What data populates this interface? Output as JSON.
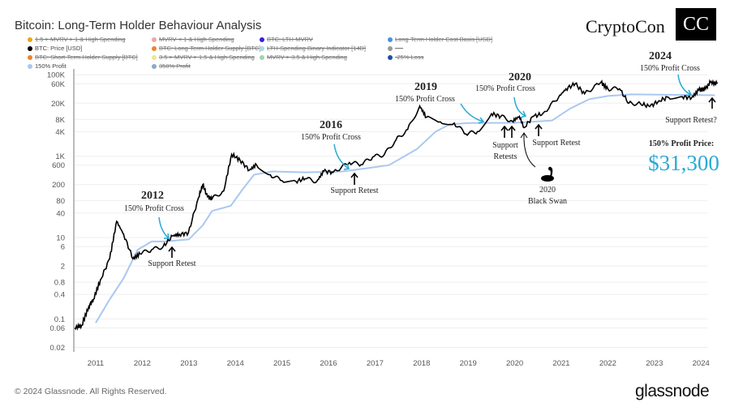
{
  "header": {
    "title": "Bitcoin: Long-Term Holder Behaviour Analysis",
    "brand": "CryptoCon",
    "brand_logo": "CC"
  },
  "legend": [
    {
      "label": "1.5 > MVRV > 1 & High Spending",
      "color": "#e6a817",
      "active": false
    },
    {
      "label": "MVRV < 1 & High Spending",
      "color": "#f2a5a5",
      "active": false
    },
    {
      "label": "BTC: LTH-MVRV",
      "color": "#3b1fd6",
      "active": false
    },
    {
      "label": "Long-Term Holder Cost Basis [USD]",
      "color": "#4a90e2",
      "active": false
    },
    {
      "label": "BTC: Price [USD]",
      "color": "#000000",
      "active": true
    },
    {
      "label": "BTC: Long-Term Holder Supply [BTC]",
      "color": "#e8872a",
      "active": false
    },
    {
      "label": "LTH-Spending Binary Indicator [14D]",
      "color": "#a8dbe8",
      "active": false
    },
    {
      "label": "----",
      "color": "#999999",
      "active": false
    },
    {
      "label": "BTC: Short-Term Holder Supply [BTC]",
      "color": "#e8872a",
      "active": false
    },
    {
      "label": "3.5 > MVRV > 1.5 & High Spending",
      "color": "#f0e68c",
      "active": false
    },
    {
      "label": "MVRV > 3.5 & High Spending",
      "color": "#9fd4b0",
      "active": false
    },
    {
      "label": "-25% Loss",
      "color": "#1f4fa8",
      "active": false
    },
    {
      "label": "150% Profit",
      "color": "#a9c8f0",
      "active": true
    },
    {
      "label": "350% Profit",
      "color": "#8fa8c8",
      "active": false
    }
  ],
  "annotations": {
    "y2012": "2012",
    "y2016": "2016",
    "y2019": "2019",
    "y2020": "2020",
    "y2024": "2024",
    "cross": "150% Profit Cross",
    "support_retest": "Support Retest",
    "support_retests_1": "Support",
    "support_retests_2": "Retests",
    "support_retest_q": "Support Retest?",
    "swan_year": "2020",
    "swan_label": "Black Swan",
    "profit_price_label": "150% Profit Price:",
    "profit_price_value": "$31,300"
  },
  "footer": {
    "copyright": "© 2024 Glassnode. All Rights Reserved.",
    "logo": "glassnode"
  },
  "chart_data": {
    "type": "line",
    "title": "Bitcoin: Long-Term Holder Behaviour Analysis",
    "y_scale": "log",
    "ylim": [
      0.02,
      100000
    ],
    "xlim": [
      2010.53,
      2024.4
    ],
    "y_ticks": [
      "100K",
      "60K",
      "20K",
      "8K",
      "4K",
      "1K",
      "600",
      "200",
      "80",
      "40",
      "10",
      "6",
      "2",
      "0.8",
      "0.4",
      "0.1",
      "0.06",
      "0.02"
    ],
    "y_tick_values": [
      100000,
      60000,
      20000,
      8000,
      4000,
      1000,
      600,
      200,
      80,
      40,
      10,
      6,
      2,
      0.8,
      0.4,
      0.1,
      0.06,
      0.02
    ],
    "x_ticks": [
      "2011",
      "2012",
      "2013",
      "2014",
      "2015",
      "2016",
      "2017",
      "2018",
      "2019",
      "2020",
      "2021",
      "2022",
      "2023",
      "2024"
    ],
    "grid": true,
    "colors": {
      "price": "#000000",
      "profit150": "#a9c8f0",
      "accent": "#29a9d6"
    },
    "series": [
      {
        "name": "BTC: Price [USD]",
        "points": [
          [
            2010.55,
            0.06
          ],
          [
            2010.7,
            0.07
          ],
          [
            2010.85,
            0.2
          ],
          [
            2010.95,
            0.3
          ],
          [
            2011.1,
            0.9
          ],
          [
            2011.3,
            3
          ],
          [
            2011.45,
            25
          ],
          [
            2011.6,
            12
          ],
          [
            2011.8,
            3
          ],
          [
            2011.95,
            4
          ],
          [
            2012.2,
            5
          ],
          [
            2012.45,
            6
          ],
          [
            2012.65,
            11
          ],
          [
            2012.8,
            12
          ],
          [
            2012.99,
            13
          ],
          [
            2013.2,
            90
          ],
          [
            2013.3,
            200
          ],
          [
            2013.4,
            100
          ],
          [
            2013.5,
            90
          ],
          [
            2013.75,
            140
          ],
          [
            2013.92,
            1100
          ],
          [
            2014.1,
            800
          ],
          [
            2014.3,
            450
          ],
          [
            2014.45,
            620
          ],
          [
            2014.75,
            350
          ],
          [
            2015.0,
            250
          ],
          [
            2015.3,
            240
          ],
          [
            2015.5,
            280
          ],
          [
            2015.75,
            240
          ],
          [
            2015.9,
            430
          ],
          [
            2016.1,
            400
          ],
          [
            2016.45,
            700
          ],
          [
            2016.7,
            620
          ],
          [
            2016.95,
            950
          ],
          [
            2017.2,
            1100
          ],
          [
            2017.45,
            2500
          ],
          [
            2017.7,
            4500
          ],
          [
            2017.96,
            17000
          ],
          [
            2018.1,
            9000
          ],
          [
            2018.4,
            7000
          ],
          [
            2018.7,
            6500
          ],
          [
            2018.95,
            3500
          ],
          [
            2019.2,
            4000
          ],
          [
            2019.5,
            11000
          ],
          [
            2019.7,
            9500
          ],
          [
            2019.95,
            7200
          ],
          [
            2020.1,
            9500
          ],
          [
            2020.2,
            5000
          ],
          [
            2020.4,
            9500
          ],
          [
            2020.6,
            11000
          ],
          [
            2020.95,
            29000
          ],
          [
            2021.1,
            45000
          ],
          [
            2021.3,
            60000
          ],
          [
            2021.5,
            34000
          ],
          [
            2021.85,
            65000
          ],
          [
            2022.0,
            45000
          ],
          [
            2022.25,
            45000
          ],
          [
            2022.45,
            20000
          ],
          [
            2022.7,
            19500
          ],
          [
            2022.9,
            16500
          ],
          [
            2023.1,
            23000
          ],
          [
            2023.3,
            28000
          ],
          [
            2023.6,
            29000
          ],
          [
            2023.8,
            27000
          ],
          [
            2023.95,
            42000
          ],
          [
            2024.1,
            45000
          ],
          [
            2024.2,
            65000
          ],
          [
            2024.35,
            60000
          ]
        ]
      },
      {
        "name": "150% Profit",
        "points": [
          [
            2011.0,
            0.08
          ],
          [
            2011.3,
            0.3
          ],
          [
            2011.6,
            1
          ],
          [
            2011.9,
            5
          ],
          [
            2012.2,
            8
          ],
          [
            2012.5,
            8
          ],
          [
            2013.0,
            9
          ],
          [
            2013.3,
            20
          ],
          [
            2013.5,
            45
          ],
          [
            2013.9,
            60
          ],
          [
            2014.15,
            150
          ],
          [
            2014.4,
            350
          ],
          [
            2014.8,
            420
          ],
          [
            2015.5,
            400
          ],
          [
            2016.3,
            420
          ],
          [
            2016.8,
            500
          ],
          [
            2017.3,
            600
          ],
          [
            2017.9,
            1500
          ],
          [
            2018.3,
            4000
          ],
          [
            2018.6,
            6000
          ],
          [
            2019.0,
            6500
          ],
          [
            2020.0,
            6600
          ],
          [
            2020.8,
            7500
          ],
          [
            2021.2,
            15000
          ],
          [
            2021.6,
            25000
          ],
          [
            2022.0,
            30000
          ],
          [
            2022.5,
            33000
          ],
          [
            2023.5,
            32000
          ],
          [
            2024.3,
            31300
          ]
        ]
      }
    ]
  }
}
